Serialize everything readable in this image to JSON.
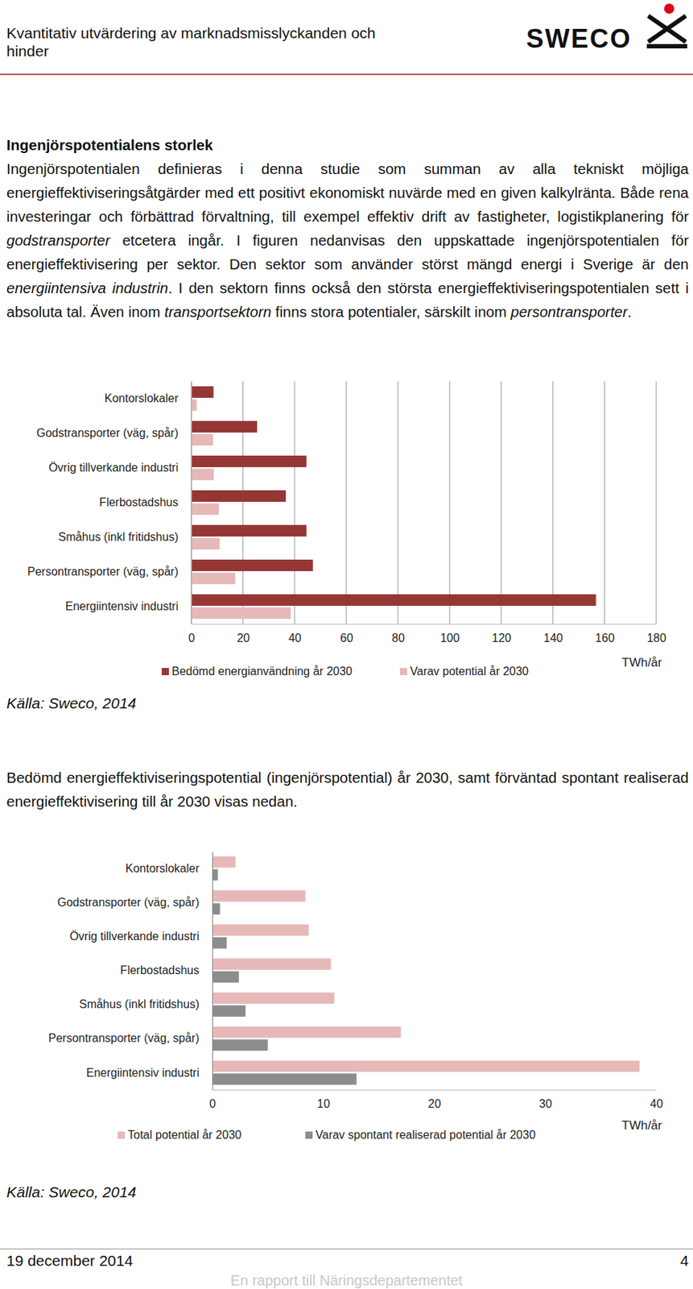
{
  "header": {
    "title_lines": [
      "Kvantitativ utvärdering av marknadsmisslyckanden och",
      "hinder"
    ],
    "logo": "SWECO"
  },
  "body": {
    "heading": "Ingenjörspotentialens storlek",
    "paragraph_1": [
      {
        "text": "Ingenjörspotentialen definieras i denna studie som summan av alla tekniskt möjliga energieffektiviseringsåtgärder med ett positivt ekonomiskt nuvärde med en given kalkylränta. Både rena investeringar och förbättrad förvaltning, till exempel effektiv drift av fastigheter, logistikplanering för ",
        "italic": false
      },
      {
        "text": "godstransporter",
        "italic": true
      },
      {
        "text": " etcetera ingår. I figuren nedanvisas den uppskattade ingenjörspotentialen för energieffektivisering per sektor. Den sektor som använder störst mängd energi i Sverige är den ",
        "italic": false
      },
      {
        "text": "energiintensiva industrin",
        "italic": true
      },
      {
        "text": ". I den sektorn finns också den största energieffektiviseringspotentialen sett i absoluta tal. Även inom ",
        "italic": false
      },
      {
        "text": "transportsektorn",
        "italic": true
      },
      {
        "text": " finns stora potentialer, särskilt inom ",
        "italic": false
      },
      {
        "text": "persontransporter",
        "italic": true
      },
      {
        "text": ".",
        "italic": false
      }
    ],
    "source_1": "Källa: Sweco, 2014",
    "paragraph_2": "Bedömd energieffektiviseringspotential (ingenjörspotential) år 2030, samt förväntad spontant realiserad energieffektivisering till år 2030 visas nedan.",
    "source_2": "Källa: Sweco, 2014"
  },
  "chart_data": [
    {
      "type": "bar",
      "orientation": "horizontal",
      "categories": [
        "Kontorslokaler",
        "Godstransporter (väg, spår)",
        "Övrig tillverkande industri",
        "Flerbostadshus",
        "Småhus (inkl fritidshus)",
        "Persontransporter (väg, spår)",
        "Energiintensiv industri"
      ],
      "series": [
        {
          "name": "Bedömd energianvändning år 2030",
          "color": "#953735",
          "values": [
            8.6,
            25.5,
            44.6,
            36.6,
            44.6,
            47.1,
            156.7
          ]
        },
        {
          "name": "Varav potential år 2030",
          "color": "#e6b9b8",
          "values": [
            2.1,
            8.4,
            8.7,
            10.7,
            11.0,
            17.0,
            38.5
          ]
        }
      ],
      "xlabel": "TWh/år",
      "xlim": [
        0,
        180
      ],
      "xticks": [
        0,
        20,
        40,
        60,
        80,
        100,
        120,
        140,
        160,
        180
      ],
      "grid": true,
      "legend": "bottom"
    },
    {
      "type": "bar",
      "orientation": "horizontal",
      "categories": [
        "Kontorslokaler",
        "Godstransporter (väg, spår)",
        "Övrig tillverkande industri",
        "Flerbostadshus",
        "Småhus (inkl fritidshus)",
        "Persontransporter (väg, spår)",
        "Energiintensiv industri"
      ],
      "series": [
        {
          "name": "Total potential år 2030",
          "color": "#e6b9b8",
          "values": [
            2.1,
            8.4,
            8.7,
            10.7,
            11.0,
            17.0,
            38.5
          ]
        },
        {
          "name": "Varav spontant realiserad potential år 2030",
          "color": "#8c8c8c",
          "values": [
            0.5,
            0.7,
            1.3,
            2.4,
            3.0,
            5.0,
            13.0
          ]
        }
      ],
      "xlabel": "TWh/år",
      "xlim": [
        0,
        40
      ],
      "xticks": [
        0,
        10,
        20,
        30,
        40
      ],
      "grid": false,
      "legend": "bottom"
    }
  ],
  "footer": {
    "date": "19 december 2014",
    "page": "4",
    "note": "En rapport till Näringsdepartementet"
  }
}
